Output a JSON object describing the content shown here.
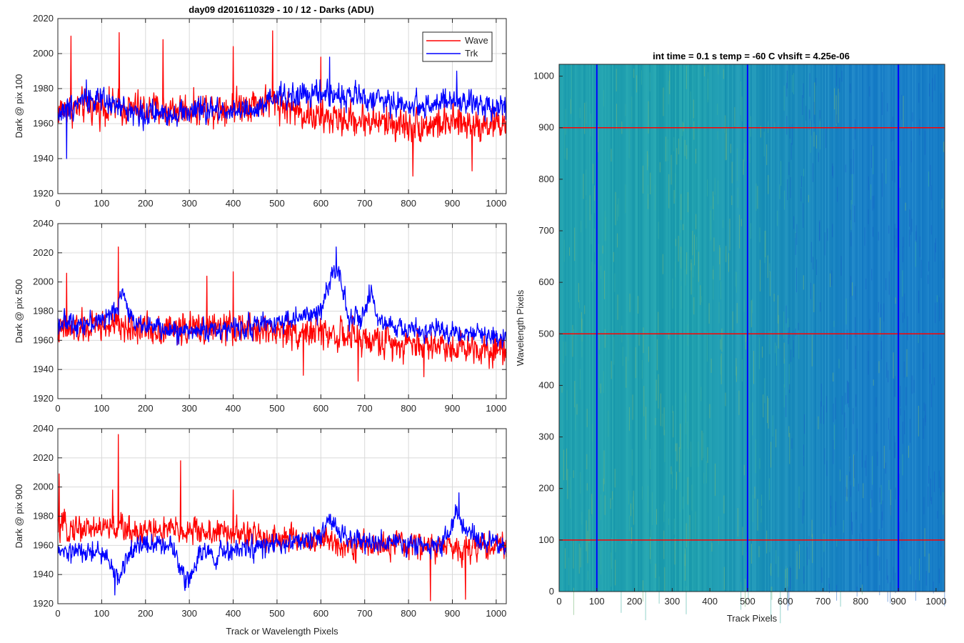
{
  "figure": {
    "left_title": "day09 d2016110329 - 10 / 12 - Darks (ADU)",
    "right_title": "int time = 0.1 s   temp = -60 C   vhsift = 4.25e-06"
  },
  "colors": {
    "wave": "#ff0000",
    "trk": "#0000ff",
    "grid": "#d9d9d9",
    "axis": "#262626"
  },
  "chart_data": [
    {
      "type": "line",
      "ylabel": "Dark @ pix 100",
      "xlabel": "",
      "xlim": [
        0,
        1023
      ],
      "ylim": [
        1920,
        2020
      ],
      "xticks": [
        0,
        100,
        200,
        300,
        400,
        500,
        600,
        700,
        800,
        900,
        1000
      ],
      "yticks": [
        1920,
        1940,
        1960,
        1980,
        2000,
        2020
      ],
      "legend": {
        "position": "top-right",
        "entries": [
          "Wave",
          "Trk"
        ]
      },
      "series": [
        {
          "name": "Wave",
          "color": "#ff0000",
          "profile": [
            [
              0,
              1968
            ],
            [
              100,
              1970
            ],
            [
              200,
              1968
            ],
            [
              300,
              1968
            ],
            [
              400,
              1970
            ],
            [
              450,
              1972
            ],
            [
              500,
              1972
            ],
            [
              560,
              1966
            ],
            [
              600,
              1963
            ],
            [
              700,
              1962
            ],
            [
              800,
              1959
            ],
            [
              900,
              1960
            ],
            [
              1023,
              1960
            ]
          ],
          "noise": 8,
          "spikes": [
            [
              30,
              2010
            ],
            [
              140,
              2012
            ],
            [
              240,
              2008
            ],
            [
              400,
              2004
            ],
            [
              490,
              2013
            ],
            [
              600,
              1998
            ],
            [
              810,
              1930
            ],
            [
              945,
              1933
            ]
          ]
        },
        {
          "name": "Trk",
          "color": "#0000ff",
          "profile": [
            [
              0,
              1965
            ],
            [
              60,
              1975
            ],
            [
              100,
              1972
            ],
            [
              200,
              1965
            ],
            [
              300,
              1967
            ],
            [
              400,
              1968
            ],
            [
              450,
              1966
            ],
            [
              500,
              1975
            ],
            [
              600,
              1977
            ],
            [
              700,
              1975
            ],
            [
              800,
              1970
            ],
            [
              900,
              1972
            ],
            [
              1023,
              1970
            ]
          ],
          "noise": 6,
          "spikes": [
            [
              20,
              1940
            ],
            [
              65,
              1985
            ],
            [
              620,
              1998
            ],
            [
              910,
              1990
            ]
          ]
        }
      ]
    },
    {
      "type": "line",
      "ylabel": "Dark @ pix 500",
      "xlabel": "",
      "xlim": [
        0,
        1023
      ],
      "ylim": [
        1920,
        2040
      ],
      "xticks": [
        0,
        100,
        200,
        300,
        400,
        500,
        600,
        700,
        800,
        900,
        1000
      ],
      "yticks": [
        1920,
        1940,
        1960,
        1980,
        2000,
        2020,
        2040
      ],
      "series": [
        {
          "name": "Wave",
          "color": "#ff0000",
          "profile": [
            [
              0,
              1966
            ],
            [
              100,
              1970
            ],
            [
              200,
              1968
            ],
            [
              300,
              1968
            ],
            [
              400,
              1968
            ],
            [
              500,
              1966
            ],
            [
              600,
              1966
            ],
            [
              700,
              1960
            ],
            [
              800,
              1958
            ],
            [
              900,
              1956
            ],
            [
              1023,
              1954
            ]
          ],
          "noise": 9,
          "spikes": [
            [
              20,
              2006
            ],
            [
              138,
              2024
            ],
            [
              340,
              2004
            ],
            [
              400,
              2007
            ],
            [
              560,
              1936
            ],
            [
              685,
              1932
            ],
            [
              835,
              1935
            ]
          ]
        },
        {
          "name": "Trk",
          "color": "#0000ff",
          "profile": [
            [
              0,
              1972
            ],
            [
              80,
              1972
            ],
            [
              130,
              1978
            ],
            [
              145,
              1995
            ],
            [
              165,
              1975
            ],
            [
              250,
              1966
            ],
            [
              400,
              1968
            ],
            [
              500,
              1973
            ],
            [
              600,
              1978
            ],
            [
              610,
              1992
            ],
            [
              625,
              2005
            ],
            [
              640,
              2012
            ],
            [
              650,
              1995
            ],
            [
              665,
              1975
            ],
            [
              700,
              1975
            ],
            [
              715,
              1992
            ],
            [
              730,
              1972
            ],
            [
              800,
              1967
            ],
            [
              900,
              1966
            ],
            [
              1023,
              1962
            ]
          ],
          "noise": 6,
          "spikes": [
            [
              635,
              2024
            ],
            [
              710,
              1998
            ]
          ]
        }
      ]
    },
    {
      "type": "line",
      "ylabel": "Dark @ pix 900",
      "xlabel": "Track or Wavelength Pixels",
      "xlim": [
        0,
        1023
      ],
      "ylim": [
        1920,
        2040
      ],
      "xticks": [
        0,
        100,
        200,
        300,
        400,
        500,
        600,
        700,
        800,
        900,
        1000
      ],
      "yticks": [
        1920,
        1940,
        1960,
        1980,
        2000,
        2020,
        2040
      ],
      "series": [
        {
          "name": "Wave",
          "color": "#ff0000",
          "profile": [
            [
              0,
              1972
            ],
            [
              100,
              1972
            ],
            [
              200,
              1970
            ],
            [
              300,
              1970
            ],
            [
              400,
              1968
            ],
            [
              500,
              1965
            ],
            [
              600,
              1963
            ],
            [
              700,
              1960
            ],
            [
              800,
              1960
            ],
            [
              900,
              1958
            ],
            [
              1023,
              1960
            ]
          ],
          "noise": 8,
          "spikes": [
            [
              3,
              2009
            ],
            [
              125,
              1998
            ],
            [
              138,
              2036
            ],
            [
              280,
              2018
            ],
            [
              400,
              1998
            ],
            [
              850,
              1922
            ],
            [
              930,
              1923
            ]
          ]
        },
        {
          "name": "Trk",
          "color": "#0000ff",
          "profile": [
            [
              0,
              1955
            ],
            [
              100,
              1955
            ],
            [
              125,
              1945
            ],
            [
              140,
              1935
            ],
            [
              160,
              1955
            ],
            [
              200,
              1962
            ],
            [
              260,
              1960
            ],
            [
              280,
              1945
            ],
            [
              300,
              1935
            ],
            [
              320,
              1955
            ],
            [
              350,
              1955
            ],
            [
              355,
              1945
            ],
            [
              370,
              1955
            ],
            [
              500,
              1960
            ],
            [
              550,
              1962
            ],
            [
              600,
              1965
            ],
            [
              620,
              1978
            ],
            [
              660,
              1965
            ],
            [
              700,
              1962
            ],
            [
              850,
              1960
            ],
            [
              880,
              1962
            ],
            [
              910,
              1982
            ],
            [
              930,
              1968
            ],
            [
              1023,
              1958
            ]
          ],
          "noise": 6,
          "spikes": [
            [
              130,
              1926
            ],
            [
              290,
              1929
            ],
            [
              915,
              1996
            ]
          ]
        }
      ]
    },
    {
      "type": "heatmap",
      "title": "int time = 0.1 s   temp = -60 C   vhsift = 4.25e-06",
      "xlabel": "Track Pixels",
      "ylabel": "Wavelength Pixels",
      "xlim": [
        0,
        1023
      ],
      "ylim": [
        0,
        1023
      ],
      "xticks": [
        0,
        100,
        200,
        300,
        400,
        500,
        600,
        700,
        800,
        900,
        1000
      ],
      "yticks": [
        0,
        100,
        200,
        300,
        400,
        500,
        600,
        700,
        800,
        900,
        1000
      ],
      "colormap": "parula",
      "hlines": [
        100,
        500,
        900
      ],
      "vlines": [
        100,
        500,
        900
      ],
      "hline_color": "#ff0000",
      "vline_color": "#0000ff"
    }
  ]
}
